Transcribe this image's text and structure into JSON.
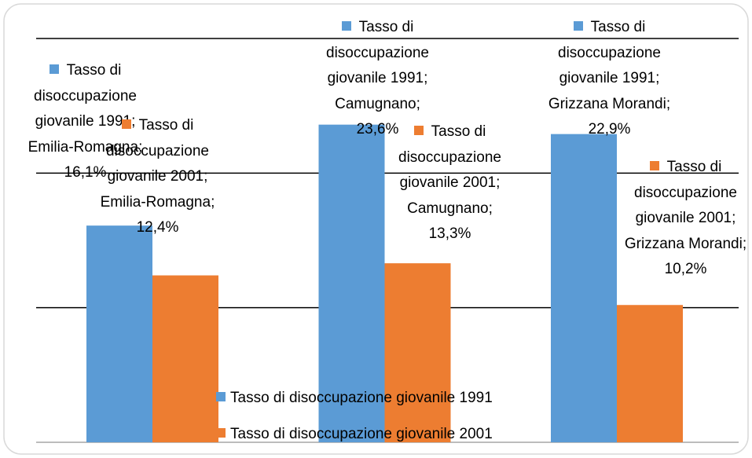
{
  "chart_data": {
    "type": "bar",
    "categories": [
      null,
      null,
      null
    ],
    "series": [
      {
        "name": "Tasso di disoccupazione giovanile 1991",
        "color": "#5b9bd5",
        "values": [
          16.1,
          23.6,
          22.9
        ],
        "value_labels": [
          "Tasso di disoccupazione giovanile 1991; Emilia-Romagna; 16,1%",
          "Tasso di disoccupazione giovanile 1991; Camugnano; 23,6%",
          "Tasso di disoccupazione giovanile 1991; Grizzana Morandi; 22,9%"
        ]
      },
      {
        "name": "Tasso di disoccupazione giovanile 2001",
        "color": "#ed7d31",
        "values": [
          12.4,
          13.3,
          10.2
        ],
        "value_labels": [
          "Tasso di disoccupazione giovanile 2001; Emilia-Romagna; 12,4%",
          "Tasso di disoccupazione giovanile 2001; Camugnano; 13,3%",
          "Tasso di disoccupazione giovanile 2001; Grizzana Morandi; 10,2%"
        ]
      }
    ],
    "ylim": [
      0,
      30
    ],
    "yticks": [
      0,
      10,
      20,
      30
    ],
    "grid": true,
    "legend": "bottom"
  }
}
